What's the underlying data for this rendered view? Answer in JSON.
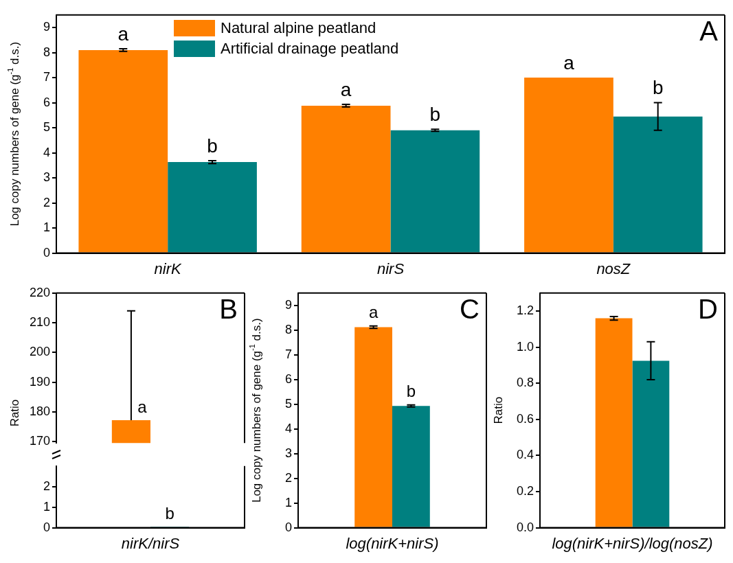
{
  "chart_data": [
    {
      "type": "bar",
      "categories": [
        "nirK",
        "nirS",
        "nosZ"
      ],
      "ylabel": "Log copy numbers of gene (g$^{-1}$ d.s.)",
      "ylim": [
        0,
        9.5
      ],
      "yticks": [
        0,
        1,
        2,
        3,
        4,
        5,
        6,
        7,
        8,
        9
      ],
      "legend": "top",
      "annotations": [
        "A"
      ],
      "series": [
        {
          "name": "Natural alpine peatland",
          "color": "#ff8000",
          "values": [
            8.1,
            5.88,
            7.0
          ],
          "errors": [
            0.05,
            0.05,
            null
          ],
          "value_labels": [
            "a",
            "a",
            "a"
          ]
        },
        {
          "name": "Artificial drainage peatland",
          "color": "#008080",
          "values": [
            3.63,
            4.9,
            5.45
          ],
          "errors": [
            0.06,
            0.04,
            0.55
          ],
          "value_labels": [
            "b",
            "b",
            "b"
          ]
        }
      ]
    },
    {
      "type": "bar",
      "categories": [
        null
      ],
      "ylabel": "Ratio",
      "ylim": [
        169.5,
        220
      ],
      "yticks": [
        170,
        180,
        190,
        200,
        210,
        220
      ],
      "tick_labels": "y",
      "annotations": [
        "B"
      ],
      "series": [
        {
          "color": "#ff8000",
          "values": [
            177.2
          ],
          "errors": [
            [
              177.2,
              214
            ]
          ],
          "value_labels": [
            "a"
          ]
        },
        {
          "color": "#008080",
          "values": [
            null
          ]
        }
      ]
    },
    {
      "type": "bar",
      "categories": [
        "nirK/nirS"
      ],
      "ylim": [
        0,
        3
      ],
      "yticks": [
        0,
        1,
        2
      ],
      "series": [
        {
          "color": "#ff8000",
          "values": [
            null
          ]
        },
        {
          "color": "#008080",
          "values": [
            0.05
          ],
          "value_labels": [
            "b"
          ]
        }
      ]
    },
    {
      "type": "bar",
      "categories": [
        "log(nirK+nirS)"
      ],
      "ylabel": "Log copy numbers of gene (g$^{-1}$ d.s.)",
      "ylim": [
        0,
        9.5
      ],
      "yticks": [
        0,
        1,
        2,
        3,
        4,
        5,
        6,
        7,
        8,
        9
      ],
      "annotations": [
        "C"
      ],
      "series": [
        {
          "color": "#ff8000",
          "values": [
            8.12
          ],
          "errors": [
            0.05
          ],
          "value_labels": [
            "a"
          ]
        },
        {
          "color": "#008080",
          "values": [
            4.93
          ],
          "errors": [
            0.04
          ],
          "value_labels": [
            "b"
          ]
        }
      ]
    },
    {
      "type": "bar",
      "categories": [
        "log(nirK+nirS)/log(nosZ)"
      ],
      "ylabel": "Ratio",
      "ylim": [
        0,
        1.3
      ],
      "yticks": [
        {
          "value": 0,
          "label": "0.0"
        },
        0.2,
        0.4,
        0.6,
        0.8,
        {
          "value": 1,
          "label": "1.0"
        },
        1.2
      ],
      "annotations": [
        "D"
      ],
      "series": [
        {
          "color": "#ff8000",
          "values": [
            1.16
          ],
          "errors": [
            0.01
          ]
        },
        {
          "color": "#008080",
          "values": [
            0.925
          ],
          "errors": [
            0.105
          ]
        }
      ]
    }
  ]
}
